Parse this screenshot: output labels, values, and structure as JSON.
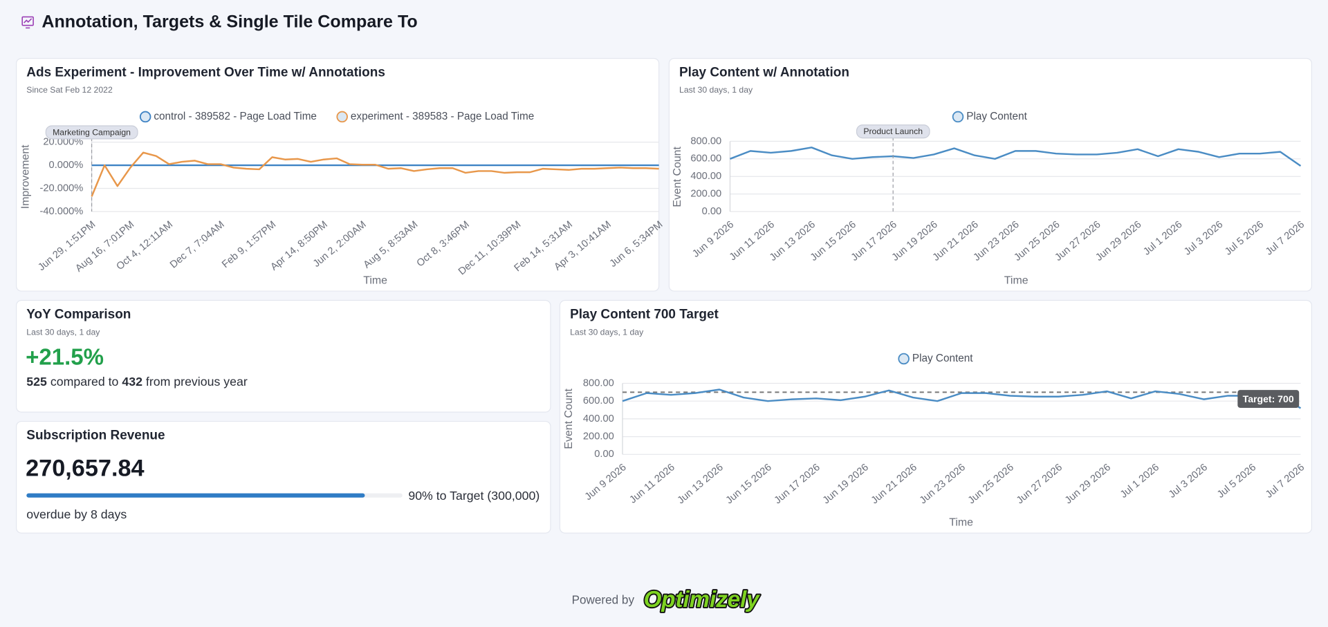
{
  "header": {
    "title": "Annotation, Targets & Single Tile Compare To"
  },
  "chart_data": [
    {
      "type": "line",
      "title": "Ads Experiment - Improvement Over Time w/ Annotations",
      "subtitle": "Since Sat Feb 12 2022",
      "x_label": "Time",
      "y_label": "Improvement",
      "categories": [
        "Jun 29, 1:51PM",
        null,
        null,
        "Aug 16, 7:01PM",
        null,
        null,
        "Oct 4, 12:11AM",
        null,
        null,
        null,
        "Dec 7, 7:04AM",
        null,
        null,
        null,
        "Feb 9, 1:57PM",
        null,
        null,
        null,
        "Apr 14, 8:50PM",
        null,
        null,
        "Jun 2, 2:00AM",
        null,
        null,
        null,
        "Aug 5, 8:53AM",
        null,
        null,
        null,
        "Oct 8, 3:46PM",
        null,
        null,
        null,
        "Dec 11, 10:39PM",
        null,
        null,
        null,
        "Feb 14, 5:31AM",
        null,
        null,
        "Apr 3, 10:41AM",
        null,
        null,
        null,
        "Jun 6, 5:34PM"
      ],
      "series": [
        {
          "name": "control - 389582 - Page Load Time",
          "color": "#3d82c4",
          "values": [
            0,
            0,
            0,
            0,
            0,
            0,
            0,
            0,
            0,
            0,
            0,
            0,
            0,
            0,
            0,
            0,
            0,
            0,
            0,
            0,
            0,
            0,
            0,
            0,
            0,
            0,
            0,
            0,
            0,
            0,
            0,
            0,
            0,
            0,
            0,
            0,
            0,
            0,
            0,
            0,
            0,
            0,
            0,
            0,
            0
          ]
        },
        {
          "name": "experiment - 389583 - Page Load Time",
          "color": "#e8974a",
          "values": [
            -27,
            0,
            -18,
            -2,
            11,
            8,
            1,
            3,
            4,
            1,
            1,
            -2,
            -3,
            -3.5,
            7,
            5,
            5.5,
            3,
            5,
            6,
            1,
            0.5,
            0.5,
            -3,
            -2.5,
            -5,
            -3.5,
            -2.5,
            -2.5,
            -6.5,
            -5,
            -5,
            -6.5,
            -6,
            -6,
            -3,
            -3.5,
            -4,
            -3,
            -3,
            -2.5,
            -2,
            -2.5,
            -2.5,
            -3
          ]
        }
      ],
      "ylim": [
        -40,
        20
      ],
      "yticks": [
        {
          "value": -40,
          "label": "-40.000%"
        },
        {
          "value": -20,
          "label": "-20.000%"
        },
        {
          "value": 0,
          "label": "0.000%"
        },
        {
          "value": 20,
          "label": "20.000%"
        }
      ],
      "grid": true,
      "annotations": [
        {
          "label": "Marketing Campaign",
          "x": "Jun 29, 1:51PM"
        }
      ]
    },
    {
      "type": "line",
      "title": "Play Content w/ Annotation",
      "subtitle": "Last 30 days, 1 day",
      "x_label": "Time",
      "y_label": "Event Count",
      "categories": [
        "Jun 9 2026",
        null,
        "Jun 11 2026",
        null,
        "Jun 13 2026",
        null,
        "Jun 15 2026",
        null,
        "Jun 17 2026",
        null,
        "Jun 19 2026",
        null,
        "Jun 21 2026",
        null,
        "Jun 23 2026",
        null,
        "Jun 25 2026",
        null,
        "Jun 27 2026",
        null,
        "Jun 29 2026",
        null,
        "Jul 1 2026",
        null,
        "Jul 3 2026",
        null,
        "Jul 5 2026",
        null,
        "Jul 7 2026"
      ],
      "series": [
        {
          "name": "Play Content",
          "color": "#4a8cc4",
          "values": [
            600,
            690,
            670,
            690,
            730,
            640,
            600,
            620,
            630,
            610,
            650,
            720,
            640,
            600,
            690,
            690,
            660,
            650,
            650,
            670,
            710,
            630,
            710,
            680,
            620,
            660,
            660,
            680,
            520
          ]
        }
      ],
      "ylim": [
        0,
        800
      ],
      "yticks": [
        {
          "value": 0,
          "label": "0.00"
        },
        {
          "value": 200,
          "label": "200.00"
        },
        {
          "value": 400,
          "label": "400.00"
        },
        {
          "value": 600,
          "label": "600.00"
        },
        {
          "value": 800,
          "label": "800.00"
        }
      ],
      "grid": true,
      "annotations": [
        {
          "label": "Product Launch",
          "x": "Jun 17 2026"
        }
      ]
    },
    {
      "type": "line",
      "title": "Play Content 700 Target",
      "subtitle": "Last 30 days, 1 day",
      "x_label": "Time",
      "y_label": "Event Count",
      "categories": [
        "Jun 9 2026",
        null,
        "Jun 11 2026",
        null,
        "Jun 13 2026",
        null,
        "Jun 15 2026",
        null,
        "Jun 17 2026",
        null,
        "Jun 19 2026",
        null,
        "Jun 21 2026",
        null,
        "Jun 23 2026",
        null,
        "Jun 25 2026",
        null,
        "Jun 27 2026",
        null,
        "Jun 29 2026",
        null,
        "Jul 1 2026",
        null,
        "Jul 3 2026",
        null,
        "Jul 5 2026",
        null,
        "Jul 7 2026"
      ],
      "series": [
        {
          "name": "Play Content",
          "color": "#4a8cc4",
          "values": [
            600,
            690,
            670,
            690,
            730,
            640,
            600,
            620,
            630,
            610,
            650,
            720,
            640,
            600,
            690,
            690,
            660,
            650,
            650,
            670,
            710,
            630,
            710,
            680,
            620,
            660,
            660,
            680,
            520
          ]
        }
      ],
      "ylim": [
        0,
        800
      ],
      "yticks": [
        {
          "value": 0,
          "label": "0.00"
        },
        {
          "value": 200,
          "label": "200.00"
        },
        {
          "value": 400,
          "label": "400.00"
        },
        {
          "value": 600,
          "label": "600.00"
        },
        {
          "value": 800,
          "label": "800.00"
        }
      ],
      "grid": true,
      "target": {
        "value": 700,
        "label": "Target: 700"
      }
    }
  ],
  "tiles": {
    "yoy": {
      "title": "YoY Comparison",
      "subtitle": "Last 30 days, 1 day",
      "change": "+21.5%",
      "current": "525",
      "compared": "compared to",
      "previous": "432",
      "suffix": "from previous year"
    },
    "subscription": {
      "title": "Subscription Revenue",
      "value": "270,657.84",
      "progress": 90,
      "progress_label": "90% to Target (300,000)",
      "note": "overdue by 8 days"
    }
  },
  "footer": {
    "powered_by": "Powered by",
    "brand": "Optimizely"
  }
}
